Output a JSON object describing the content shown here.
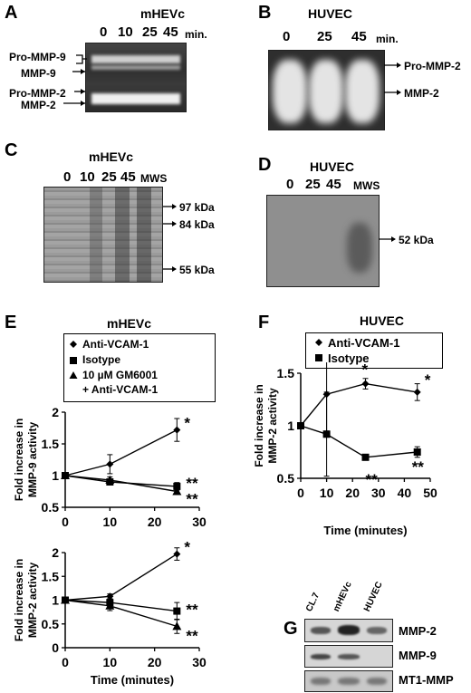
{
  "panelA": {
    "letter": "A",
    "title": "mHEVc",
    "lanes": [
      "0",
      "10",
      "25",
      "45"
    ],
    "unit": "min.",
    "labels": [
      "Pro-MMP-9",
      "MMP-9",
      "Pro-MMP-2",
      "MMP-2"
    ]
  },
  "panelB": {
    "letter": "B",
    "title": "HUVEC",
    "lanes": [
      "0",
      "25",
      "45"
    ],
    "unit": "min.",
    "labels": [
      "Pro-MMP-2",
      "MMP-2"
    ]
  },
  "panelC": {
    "letter": "C",
    "title": "mHEVc",
    "lanes": [
      "0",
      "10",
      "25",
      "45",
      "MWS"
    ],
    "markers": [
      "97 kDa",
      "84 kDa",
      "55 kDa"
    ]
  },
  "panelD": {
    "letter": "D",
    "title": "HUVEC",
    "lanes": [
      "0",
      "25",
      "45",
      "MWS"
    ],
    "markers": [
      "52 kDa"
    ]
  },
  "panelE": {
    "letter": "E",
    "title": "mHEVc",
    "legend": [
      "Anti-VCAM-1",
      "Isotype",
      "10 µM GM6001",
      "+ Anti-VCAM-1"
    ]
  },
  "panelF": {
    "letter": "F",
    "title": "HUVEC",
    "legend": [
      "Anti-VCAM-1",
      "Isotype"
    ]
  },
  "panelG": {
    "letter": "G",
    "lanes": [
      "CL.7",
      "mHEVc",
      "HUVEC"
    ],
    "rows": [
      "MMP-2",
      "MMP-9",
      "MT1-MMP"
    ]
  },
  "chart_data": [
    {
      "id": "E-top",
      "type": "line",
      "ylabel": "Fold increase in MMP-9 activity",
      "xlabel": "",
      "xlim": [
        0,
        30
      ],
      "ylim": [
        0.5,
        2
      ],
      "xticks": [
        "0",
        "10",
        "20",
        "30"
      ],
      "yticks": [
        "0.5",
        "1",
        "1.5",
        "2"
      ],
      "annotations": [
        "*",
        "**",
        "**"
      ],
      "series": [
        {
          "name": "Anti-VCAM-1",
          "marker": "diamond",
          "x": [
            0,
            10,
            25
          ],
          "y": [
            1.0,
            1.18,
            1.72
          ],
          "err": [
            0,
            0.15,
            0.18
          ]
        },
        {
          "name": "Isotype",
          "marker": "square",
          "x": [
            0,
            10,
            25
          ],
          "y": [
            1.0,
            0.9,
            0.83
          ],
          "err": [
            0,
            0.05,
            0.06
          ]
        },
        {
          "name": "10 µM GM6001 + Anti-VCAM-1",
          "marker": "triangle",
          "x": [
            0,
            10,
            25
          ],
          "y": [
            1.0,
            0.93,
            0.75
          ],
          "err": [
            0,
            0.05,
            0.05
          ]
        }
      ]
    },
    {
      "id": "E-bottom",
      "type": "line",
      "ylabel": "Fold increase in MMP-2 activity",
      "xlabel": "Time (minutes)",
      "xlim": [
        0,
        30
      ],
      "ylim": [
        0,
        2
      ],
      "xticks": [
        "0",
        "10",
        "20",
        "30"
      ],
      "yticks": [
        "0",
        "0.5",
        "1",
        "1.5",
        "2"
      ],
      "annotations": [
        "*",
        "**",
        "**"
      ],
      "series": [
        {
          "name": "Anti-VCAM-1",
          "marker": "diamond",
          "x": [
            0,
            10,
            25
          ],
          "y": [
            1.0,
            1.08,
            1.97
          ],
          "err": [
            0,
            0.05,
            0.13
          ]
        },
        {
          "name": "Isotype",
          "marker": "square",
          "x": [
            0,
            10,
            25
          ],
          "y": [
            1.0,
            0.95,
            0.77
          ],
          "err": [
            0,
            0.08,
            0.18
          ]
        },
        {
          "name": "10 µM GM6001 + Anti-VCAM-1",
          "marker": "triangle",
          "x": [
            0,
            10,
            25
          ],
          "y": [
            1.0,
            0.88,
            0.45
          ],
          "err": [
            0,
            0.1,
            0.15
          ]
        }
      ]
    },
    {
      "id": "F",
      "type": "line",
      "ylabel": "Fold increase in MMP-2 activity",
      "xlabel": "Time (minutes)",
      "xlim": [
        0,
        50
      ],
      "ylim": [
        0.5,
        1.5
      ],
      "xticks": [
        "0",
        "10",
        "20",
        "30",
        "40",
        "50"
      ],
      "yticks": [
        "0.5",
        "1",
        "1.5"
      ],
      "annotations": [
        "*",
        "*",
        "**",
        "**"
      ],
      "series": [
        {
          "name": "Anti-VCAM-1",
          "marker": "diamond",
          "x": [
            0,
            10,
            25,
            45
          ],
          "y": [
            1.0,
            1.3,
            1.4,
            1.32
          ],
          "err": [
            0,
            0.35,
            0.05,
            0.08
          ]
        },
        {
          "name": "Isotype",
          "marker": "square",
          "x": [
            0,
            10,
            25,
            45
          ],
          "y": [
            1.0,
            0.92,
            0.7,
            0.75
          ],
          "err": [
            0,
            0.4,
            0.02,
            0.05
          ]
        }
      ]
    }
  ]
}
